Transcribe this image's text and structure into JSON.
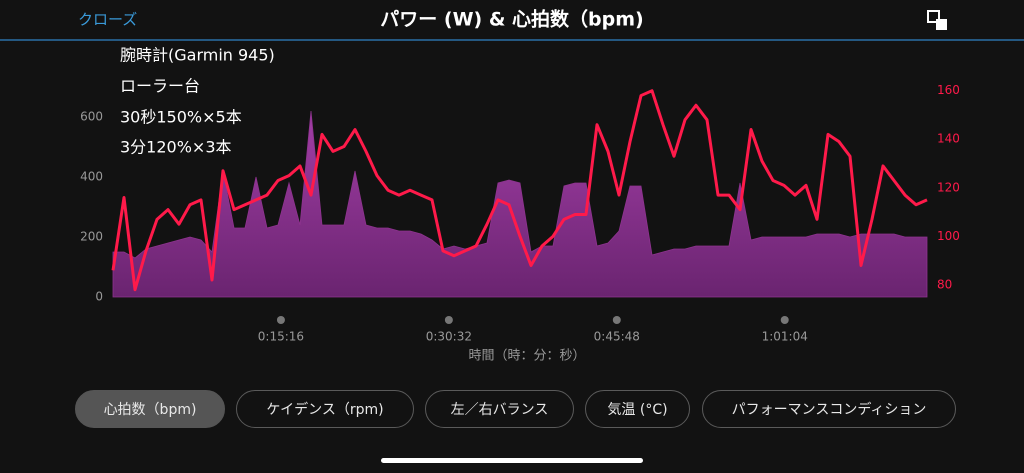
{
  "header": {
    "close": "クローズ",
    "title": "パワー (W) & 心拍数（bpm)"
  },
  "annotations": [
    "腕時計(Garmin 945)",
    "ローラー台",
    "30秒150%×5本",
    "3分120%×3本"
  ],
  "chart_data": {
    "type": "line",
    "x_label": "時間（時：分：秒）",
    "x": [
      0,
      60,
      120,
      180,
      240,
      300,
      360,
      420,
      480,
      540,
      600,
      660,
      720,
      780,
      840,
      900,
      960,
      1020,
      1080,
      1140,
      1200,
      1260,
      1320,
      1380,
      1440,
      1500,
      1560,
      1620,
      1680,
      1740,
      1800,
      1860,
      1920,
      1980,
      2040,
      2100,
      2160,
      2220,
      2280,
      2340,
      2400,
      2460,
      2520,
      2580,
      2640,
      2700,
      2760,
      2820,
      2880,
      2940,
      3000,
      3060,
      3120,
      3180,
      3240,
      3300,
      3360,
      3420,
      3480,
      3540,
      3600,
      3660,
      3720,
      3780,
      3840,
      3900,
      3960,
      4020,
      4080,
      4140,
      4200,
      4260,
      4320,
      4380,
      4440
    ],
    "xlim": [
      0,
      4440
    ],
    "xticks": [
      {
        "value": 916,
        "label": "0:15:16"
      },
      {
        "value": 1832,
        "label": "0:30:32"
      },
      {
        "value": 2748,
        "label": "0:45:48"
      },
      {
        "value": 3664,
        "label": "1:01:04"
      }
    ],
    "ylim": [
      0,
      720
    ],
    "yticks": [
      0,
      200,
      400,
      600
    ],
    "y2lim": [
      75,
      164
    ],
    "y2ticks": [
      80,
      100,
      120,
      140,
      160
    ],
    "series": [
      {
        "name": "パワー (W)",
        "color": "#8e338f",
        "kind": "area",
        "values": [
          150,
          150,
          130,
          160,
          170,
          180,
          190,
          200,
          190,
          150,
          420,
          230,
          230,
          400,
          230,
          240,
          380,
          240,
          620,
          240,
          240,
          240,
          420,
          240,
          230,
          230,
          220,
          220,
          210,
          190,
          160,
          170,
          160,
          170,
          180,
          380,
          390,
          380,
          150,
          170,
          170,
          370,
          380,
          380,
          170,
          180,
          220,
          370,
          370,
          140,
          150,
          160,
          160,
          170,
          170,
          170,
          170,
          380,
          190,
          200,
          200,
          200,
          200,
          200,
          210,
          210,
          210,
          200,
          210,
          210,
          210,
          210,
          200,
          200,
          200
        ]
      },
      {
        "name": "心拍数（bpm)",
        "color": "#ff1a4a",
        "kind": "line",
        "axis": "y2",
        "values": [
          86,
          116,
          78,
          94,
          107,
          111,
          105,
          113,
          115,
          82,
          127,
          111,
          113,
          115,
          117,
          123,
          125,
          129,
          117,
          142,
          135,
          137,
          144,
          135,
          125,
          119,
          117,
          119,
          117,
          115,
          94,
          92,
          94,
          96,
          105,
          115,
          113,
          100,
          88,
          96,
          100,
          107,
          109,
          109,
          146,
          135,
          117,
          139,
          158,
          160,
          146,
          133,
          148,
          154,
          148,
          117,
          117,
          111,
          144,
          131,
          123,
          121,
          117,
          121,
          107,
          142,
          139,
          133,
          88,
          107,
          129,
          123,
          117,
          113,
          115
        ]
      }
    ]
  },
  "buttons": [
    "心拍数（bpm)",
    "ケイデンス（rpm)",
    "左／右バランス",
    "気温 (°C)",
    "パフォーマンスコンディション"
  ]
}
